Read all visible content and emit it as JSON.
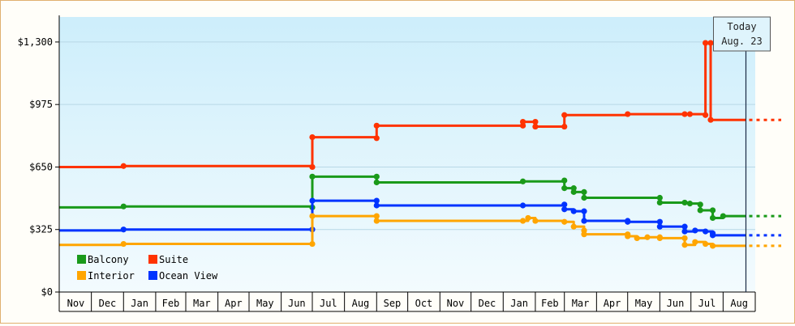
{
  "chart_data": {
    "type": "line",
    "step": true,
    "ylim": [
      0,
      1430
    ],
    "yticks": [
      0,
      325,
      650,
      975,
      1300
    ],
    "ytick_labels": [
      "$0",
      "$325",
      "$650",
      "$975",
      "$1,300"
    ],
    "x_range": [
      "2023-10-31",
      "2025-09-01"
    ],
    "months": [
      {
        "label": "Nov",
        "date": "2023-11-01"
      },
      {
        "label": "Dec",
        "date": "2023-12-01"
      },
      {
        "label": "Jan",
        "date": "2024-01-01"
      },
      {
        "label": "Feb",
        "date": "2024-02-01"
      },
      {
        "label": "Mar",
        "date": "2024-03-01"
      },
      {
        "label": "Apr",
        "date": "2024-04-01"
      },
      {
        "label": "May",
        "date": "2024-05-01"
      },
      {
        "label": "Jun",
        "date": "2024-06-01"
      },
      {
        "label": "Jul",
        "date": "2024-07-01"
      },
      {
        "label": "Aug",
        "date": "2024-08-01"
      },
      {
        "label": "Sep",
        "date": "2024-09-01"
      },
      {
        "label": "Oct",
        "date": "2024-10-01"
      },
      {
        "label": "Nov",
        "date": "2024-11-01"
      },
      {
        "label": "Dec",
        "date": "2024-12-01"
      },
      {
        "label": "Jan",
        "date": "2025-01-01"
      },
      {
        "label": "Feb",
        "date": "2025-02-01"
      },
      {
        "label": "Mar",
        "date": "2025-03-01"
      },
      {
        "label": "Apr",
        "date": "2025-04-01"
      },
      {
        "label": "May",
        "date": "2025-05-01"
      },
      {
        "label": "Jun",
        "date": "2025-06-01"
      },
      {
        "label": "Jul",
        "date": "2025-07-01"
      },
      {
        "label": "Aug",
        "date": "2025-08-01"
      }
    ],
    "today": {
      "date": "2025-08-23",
      "line1": "Today",
      "line2": "Aug. 23"
    },
    "legend": [
      "Balcony",
      "Suite",
      "Interior",
      "Ocean View"
    ],
    "series": [
      {
        "name": "Suite",
        "color": "#ff3300",
        "points": [
          [
            "2023-10-31",
            650
          ],
          [
            "2024-01-01",
            655
          ],
          [
            "2024-07-01",
            650
          ],
          [
            "2024-07-01",
            805
          ],
          [
            "2024-09-01",
            800
          ],
          [
            "2024-09-01",
            865
          ],
          [
            "2025-01-20",
            865
          ],
          [
            "2025-01-20",
            885
          ],
          [
            "2025-02-01",
            885
          ],
          [
            "2025-02-01",
            860
          ],
          [
            "2025-03-01",
            860
          ],
          [
            "2025-03-01",
            920
          ],
          [
            "2025-05-01",
            925
          ],
          [
            "2025-06-25",
            925
          ],
          [
            "2025-06-30",
            925
          ],
          [
            "2025-07-15",
            920
          ],
          [
            "2025-07-15",
            1295
          ],
          [
            "2025-07-20",
            1295
          ],
          [
            "2025-07-20",
            895
          ],
          [
            "2025-08-23",
            895
          ]
        ],
        "projection": 895
      },
      {
        "name": "Balcony",
        "color": "#1a9a1a",
        "points": [
          [
            "2023-10-31",
            440
          ],
          [
            "2024-01-01",
            445
          ],
          [
            "2024-07-01",
            440
          ],
          [
            "2024-07-01",
            600
          ],
          [
            "2024-09-01",
            600
          ],
          [
            "2024-09-01",
            570
          ],
          [
            "2025-01-20",
            575
          ],
          [
            "2025-03-01",
            580
          ],
          [
            "2025-03-01",
            540
          ],
          [
            "2025-03-10",
            540
          ],
          [
            "2025-03-10",
            520
          ],
          [
            "2025-03-20",
            520
          ],
          [
            "2025-03-20",
            490
          ],
          [
            "2025-06-01",
            490
          ],
          [
            "2025-06-01",
            465
          ],
          [
            "2025-06-25",
            465
          ],
          [
            "2025-06-30",
            460
          ],
          [
            "2025-07-10",
            455
          ],
          [
            "2025-07-10",
            425
          ],
          [
            "2025-07-22",
            425
          ],
          [
            "2025-07-22",
            385
          ],
          [
            "2025-08-01",
            395
          ],
          [
            "2025-08-23",
            395
          ]
        ],
        "projection": 395
      },
      {
        "name": "Ocean View",
        "color": "#0033ff",
        "points": [
          [
            "2023-10-31",
            320
          ],
          [
            "2024-01-01",
            325
          ],
          [
            "2024-07-01",
            325
          ],
          [
            "2024-07-01",
            475
          ],
          [
            "2024-09-01",
            475
          ],
          [
            "2024-09-01",
            450
          ],
          [
            "2025-01-20",
            450
          ],
          [
            "2025-03-01",
            455
          ],
          [
            "2025-03-01",
            430
          ],
          [
            "2025-03-10",
            420
          ],
          [
            "2025-03-20",
            420
          ],
          [
            "2025-03-20",
            370
          ],
          [
            "2025-05-01",
            370
          ],
          [
            "2025-05-01",
            365
          ],
          [
            "2025-06-01",
            365
          ],
          [
            "2025-06-01",
            340
          ],
          [
            "2025-06-25",
            340
          ],
          [
            "2025-06-25",
            315
          ],
          [
            "2025-07-05",
            320
          ],
          [
            "2025-07-15",
            315
          ],
          [
            "2025-07-22",
            305
          ],
          [
            "2025-07-22",
            295
          ],
          [
            "2025-08-23",
            295
          ]
        ],
        "projection": 295
      },
      {
        "name": "Interior",
        "color": "#ffa500",
        "points": [
          [
            "2023-10-31",
            245
          ],
          [
            "2024-01-01",
            250
          ],
          [
            "2024-07-01",
            250
          ],
          [
            "2024-07-01",
            395
          ],
          [
            "2024-09-01",
            395
          ],
          [
            "2024-09-01",
            370
          ],
          [
            "2025-01-20",
            370
          ],
          [
            "2025-01-25",
            385
          ],
          [
            "2025-02-01",
            370
          ],
          [
            "2025-03-01",
            365
          ],
          [
            "2025-03-10",
            340
          ],
          [
            "2025-03-20",
            320
          ],
          [
            "2025-03-20",
            300
          ],
          [
            "2025-05-01",
            300
          ],
          [
            "2025-05-01",
            290
          ],
          [
            "2025-05-10",
            280
          ],
          [
            "2025-05-20",
            285
          ],
          [
            "2025-06-01",
            285
          ],
          [
            "2025-06-01",
            280
          ],
          [
            "2025-06-25",
            280
          ],
          [
            "2025-06-25",
            245
          ],
          [
            "2025-07-05",
            260
          ],
          [
            "2025-07-15",
            250
          ],
          [
            "2025-07-22",
            240
          ],
          [
            "2025-08-23",
            240
          ]
        ],
        "projection": 240
      }
    ]
  }
}
